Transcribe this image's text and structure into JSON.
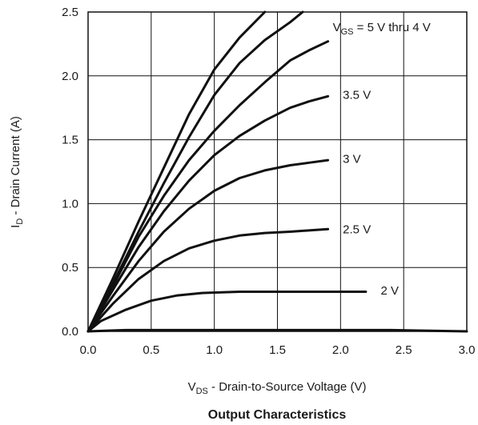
{
  "chart_data": {
    "type": "line",
    "title": "Output Characteristics",
    "xlabel": {
      "prefix": "V",
      "sub": "DS",
      "rest": " - Drain-to-Source Voltage (V)"
    },
    "ylabel": {
      "prefix": "I",
      "sub": "D",
      "rest": " -  Drain Current (A)"
    },
    "xlim": [
      0.0,
      3.0
    ],
    "ylim": [
      0.0,
      2.5
    ],
    "x_ticks": [
      "0.0",
      "0.5",
      "1.0",
      "1.5",
      "2.0",
      "2.5",
      "3.0"
    ],
    "y_ticks": [
      "0.0",
      "0.5",
      "1.0",
      "1.5",
      "2.0",
      "2.5"
    ],
    "grid": true,
    "series": [
      {
        "x": [
          0,
          0.2,
          0.4,
          0.6,
          0.8,
          1.0,
          1.2,
          1.4
        ],
        "y": [
          0,
          0.42,
          0.86,
          1.28,
          1.7,
          2.05,
          2.3,
          2.5
        ]
      },
      {
        "x": [
          0,
          0.2,
          0.4,
          0.6,
          0.8,
          1.0,
          1.2,
          1.4,
          1.6,
          1.7
        ],
        "y": [
          0,
          0.38,
          0.78,
          1.16,
          1.52,
          1.85,
          2.1,
          2.28,
          2.42,
          2.5
        ]
      },
      {
        "x": [
          0,
          0.2,
          0.4,
          0.6,
          0.8,
          1.0,
          1.2,
          1.4,
          1.6,
          1.75,
          1.9
        ],
        "y": [
          0,
          0.36,
          0.74,
          1.06,
          1.34,
          1.57,
          1.77,
          1.95,
          2.12,
          2.2,
          2.27
        ]
      },
      {
        "x": [
          0,
          0.2,
          0.4,
          0.6,
          0.8,
          1.0,
          1.2,
          1.4,
          1.6,
          1.75,
          1.9
        ],
        "y": [
          0,
          0.33,
          0.66,
          0.94,
          1.18,
          1.38,
          1.53,
          1.65,
          1.75,
          1.8,
          1.84
        ]
      },
      {
        "x": [
          0,
          0.2,
          0.4,
          0.6,
          0.8,
          1.0,
          1.2,
          1.4,
          1.6,
          1.75,
          1.9
        ],
        "y": [
          0,
          0.28,
          0.55,
          0.78,
          0.96,
          1.1,
          1.2,
          1.26,
          1.3,
          1.32,
          1.34
        ]
      },
      {
        "x": [
          0,
          0.2,
          0.4,
          0.6,
          0.8,
          1.0,
          1.2,
          1.4,
          1.6,
          1.75,
          1.9
        ],
        "y": [
          0,
          0.22,
          0.41,
          0.55,
          0.65,
          0.71,
          0.75,
          0.77,
          0.78,
          0.79,
          0.8
        ]
      },
      {
        "x": [
          0,
          0.1,
          0.3,
          0.5,
          0.7,
          0.9,
          1.2,
          1.6,
          2.0,
          2.2
        ],
        "y": [
          0,
          0.08,
          0.17,
          0.24,
          0.28,
          0.3,
          0.31,
          0.31,
          0.31,
          0.31
        ]
      },
      {
        "x": [
          0,
          0.3,
          1.0,
          2.0,
          2.4,
          3.0
        ],
        "y": [
          0,
          0.01,
          0.01,
          0.01,
          0.01,
          0.0
        ]
      }
    ],
    "annotations": [
      {
        "label_main": "V",
        "label_sub": "GS",
        "label_rest": " = 5 V thru 4 V",
        "x": 1.9,
        "y": 2.38
      },
      {
        "label_main": "3.5 V",
        "x": 1.98,
        "y": 1.85
      },
      {
        "label_main": "3 V",
        "x": 1.98,
        "y": 1.35
      },
      {
        "label_main": "2.5 V",
        "x": 1.98,
        "y": 0.8
      },
      {
        "label_main": "2 V",
        "x": 2.28,
        "y": 0.32
      }
    ]
  }
}
